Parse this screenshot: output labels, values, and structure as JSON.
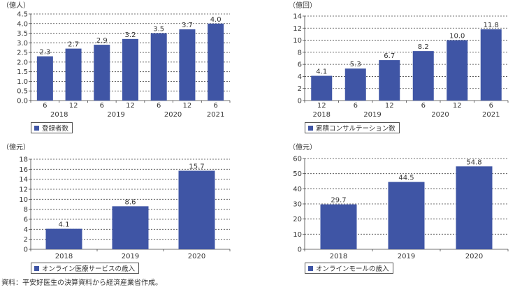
{
  "bar_color": "#3f55a5",
  "source_note": "資料：平安好医生の決算資料から経済産業省作成。",
  "chart_data": [
    {
      "type": "bar",
      "unit": "（億人）",
      "legend": "登録者数",
      "categories": [
        "6",
        "12",
        "6",
        "12",
        "6",
        "12",
        "6"
      ],
      "years": [
        {
          "label": "2018",
          "span": [
            0,
            1
          ]
        },
        {
          "label": "2019",
          "span": [
            2,
            3
          ]
        },
        {
          "label": "2020",
          "span": [
            4,
            5
          ]
        },
        {
          "label": "2021",
          "span": [
            6,
            6
          ]
        }
      ],
      "values": [
        2.3,
        2.7,
        2.9,
        3.2,
        3.5,
        3.7,
        4.0
      ],
      "value_labels": [
        "2.3",
        "2.7",
        "2.9",
        "3.2",
        "3.5",
        "3.7",
        "4.0"
      ],
      "ylim": [
        0,
        4.5
      ],
      "yticks": [
        "0.0",
        "0.5",
        "1.0",
        "1.5",
        "2.0",
        "2.5",
        "3.0",
        "3.5",
        "4.0",
        "4.5"
      ],
      "grid": true
    },
    {
      "type": "bar",
      "unit": "（億回）",
      "legend": "累積コンサルテーション数",
      "categories": [
        "12",
        "6",
        "12",
        "6",
        "12",
        "6"
      ],
      "years": [
        {
          "label": "2018",
          "span": [
            0,
            0
          ]
        },
        {
          "label": "2019",
          "span": [
            1,
            2
          ]
        },
        {
          "label": "2020",
          "span": [
            3,
            4
          ]
        },
        {
          "label": "2021",
          "span": [
            5,
            5
          ]
        }
      ],
      "values": [
        4.1,
        5.3,
        6.7,
        8.2,
        10.0,
        11.8
      ],
      "value_labels": [
        "4.1",
        "5.3",
        "6.7",
        "8.2",
        "10.0",
        "11.8"
      ],
      "ylim": [
        0,
        14
      ],
      "yticks": [
        "0",
        "2",
        "4",
        "6",
        "8",
        "10",
        "12",
        "14"
      ],
      "grid": true
    },
    {
      "type": "bar",
      "unit": "（億元）",
      "legend": "オンライン医療サービスの歳入",
      "categories": [
        "2018",
        "2019",
        "2020"
      ],
      "years": [],
      "values": [
        4.1,
        8.6,
        15.7
      ],
      "value_labels": [
        "4.1",
        "8.6",
        "15.7"
      ],
      "ylim": [
        0,
        18
      ],
      "yticks": [
        "0",
        "2",
        "4",
        "6",
        "8",
        "10",
        "12",
        "14",
        "16",
        "18"
      ],
      "grid": true
    },
    {
      "type": "bar",
      "unit": "（億元）",
      "legend": "オンラインモールの歳入",
      "categories": [
        "2018",
        "2019",
        "2020"
      ],
      "years": [],
      "values": [
        29.7,
        44.5,
        54.8
      ],
      "value_labels": [
        "29.7",
        "44.5",
        "54.8"
      ],
      "ylim": [
        0,
        60
      ],
      "yticks": [
        "0",
        "10",
        "20",
        "30",
        "40",
        "50",
        "60"
      ],
      "grid": true
    }
  ]
}
